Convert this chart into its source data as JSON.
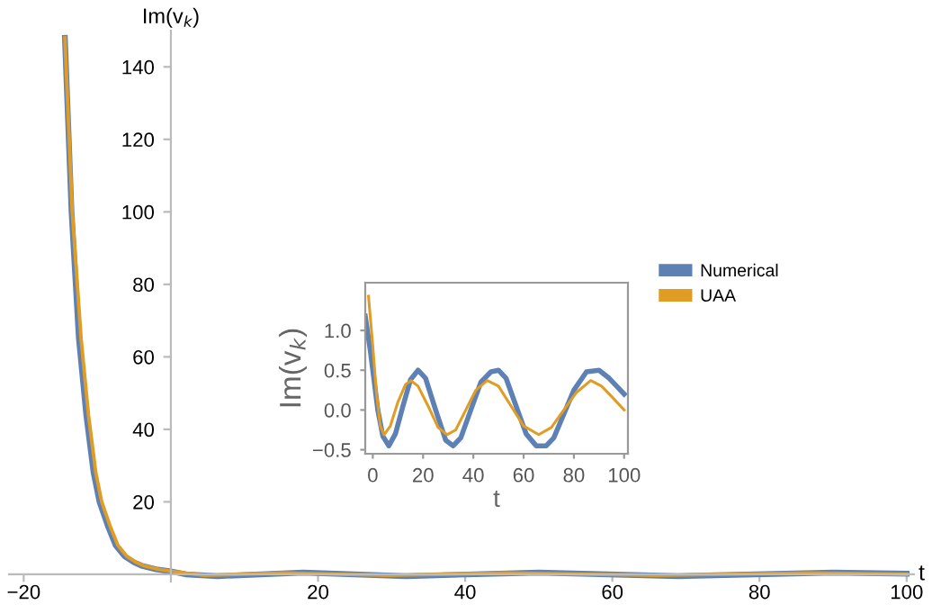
{
  "chart_data": [
    {
      "type": "line",
      "xlabel": "t",
      "ylabel": "Im(v$_{k}$)",
      "xlim": [
        -22,
        101
      ],
      "ylim": [
        -2,
        150
      ],
      "xticks": [
        {
          "value": -20,
          "label": "−20"
        },
        20,
        40,
        60,
        80,
        100
      ],
      "yticks": [
        20,
        40,
        60,
        80,
        100,
        120,
        140
      ],
      "legend": "right",
      "grid": false,
      "series": [
        {
          "name": "Numerical",
          "color": "#5e81b5",
          "x": [
            -14.4,
            -13.5,
            -12.5,
            -11.5,
            -10.5,
            -9.7,
            -8.5,
            -7.5,
            -6.3,
            -5,
            -4,
            -2,
            0,
            2,
            6.4,
            18,
            32,
            50,
            69,
            90,
            100
          ],
          "values": [
            148,
            100,
            65,
            44,
            28,
            20,
            13,
            8,
            5,
            3.3,
            2.4,
            1.4,
            0.8,
            0,
            -0.5,
            0.5,
            -0.5,
            0.5,
            -0.5,
            0.5,
            0.2
          ]
        },
        {
          "name": "UAA",
          "color": "#e19c24",
          "x": [
            -14.4,
            -13.4,
            -12.2,
            -11.2,
            -10.2,
            -9.4,
            -8.2,
            -7.2,
            -6,
            -4.7,
            -3.7,
            -1.7,
            0,
            4.5,
            15.2,
            29.5,
            45.5,
            66,
            86.7,
            100
          ],
          "values": [
            148,
            100,
            65,
            44,
            28,
            20,
            13,
            8,
            5,
            3.3,
            2.4,
            1.4,
            0.9,
            -0.3,
            0.4,
            -0.3,
            0.4,
            -0.3,
            0.4,
            0.0
          ]
        }
      ]
    },
    {
      "type": "line",
      "xlabel": "t",
      "ylabel": "Im(v$_{k}$)",
      "xlim": [
        -3,
        101.5
      ],
      "ylim": [
        -0.55,
        1.6
      ],
      "xticks": [
        0,
        20,
        40,
        60,
        80,
        100
      ],
      "yticks": [
        {
          "value": -0.5,
          "label": "−0.5"
        },
        {
          "value": 0,
          "label": "0.0"
        },
        {
          "value": 0.5,
          "label": "0.5"
        },
        {
          "value": 1,
          "label": "1.0"
        }
      ],
      "grid": false,
      "series": [
        {
          "color": "#5e81b5",
          "x": [
            -3,
            -1,
            0,
            2,
            4,
            6.4,
            9,
            12,
            15,
            18,
            21,
            25,
            29,
            32,
            35,
            39,
            43,
            47,
            50,
            53,
            57,
            61,
            65,
            69,
            72,
            76,
            80,
            85,
            90,
            94,
            97,
            100
          ],
          "values": [
            1.18,
            0.75,
            0.5,
            0.0,
            -0.33,
            -0.45,
            -0.3,
            0.05,
            0.38,
            0.5,
            0.4,
            0.0,
            -0.38,
            -0.45,
            -0.35,
            0.0,
            0.35,
            0.48,
            0.5,
            0.4,
            0.05,
            -0.3,
            -0.45,
            -0.45,
            -0.35,
            -0.05,
            0.25,
            0.48,
            0.5,
            0.4,
            0.3,
            0.2
          ]
        },
        {
          "color": "#e19c24",
          "x": [
            -1.7,
            0,
            1.5,
            3,
            4.5,
            7,
            10,
            13,
            15.2,
            18,
            22,
            26,
            29.5,
            33,
            37,
            41,
            45.5,
            50,
            55,
            60,
            66,
            71,
            76,
            81,
            86.7,
            91,
            95,
            100
          ],
          "values": [
            1.43,
            0.8,
            0.2,
            -0.2,
            -0.31,
            -0.2,
            0.1,
            0.32,
            0.37,
            0.3,
            0.05,
            -0.22,
            -0.31,
            -0.25,
            0.0,
            0.25,
            0.37,
            0.3,
            0.05,
            -0.2,
            -0.31,
            -0.22,
            0.0,
            0.22,
            0.37,
            0.3,
            0.17,
            0.0
          ]
        }
      ]
    }
  ]
}
